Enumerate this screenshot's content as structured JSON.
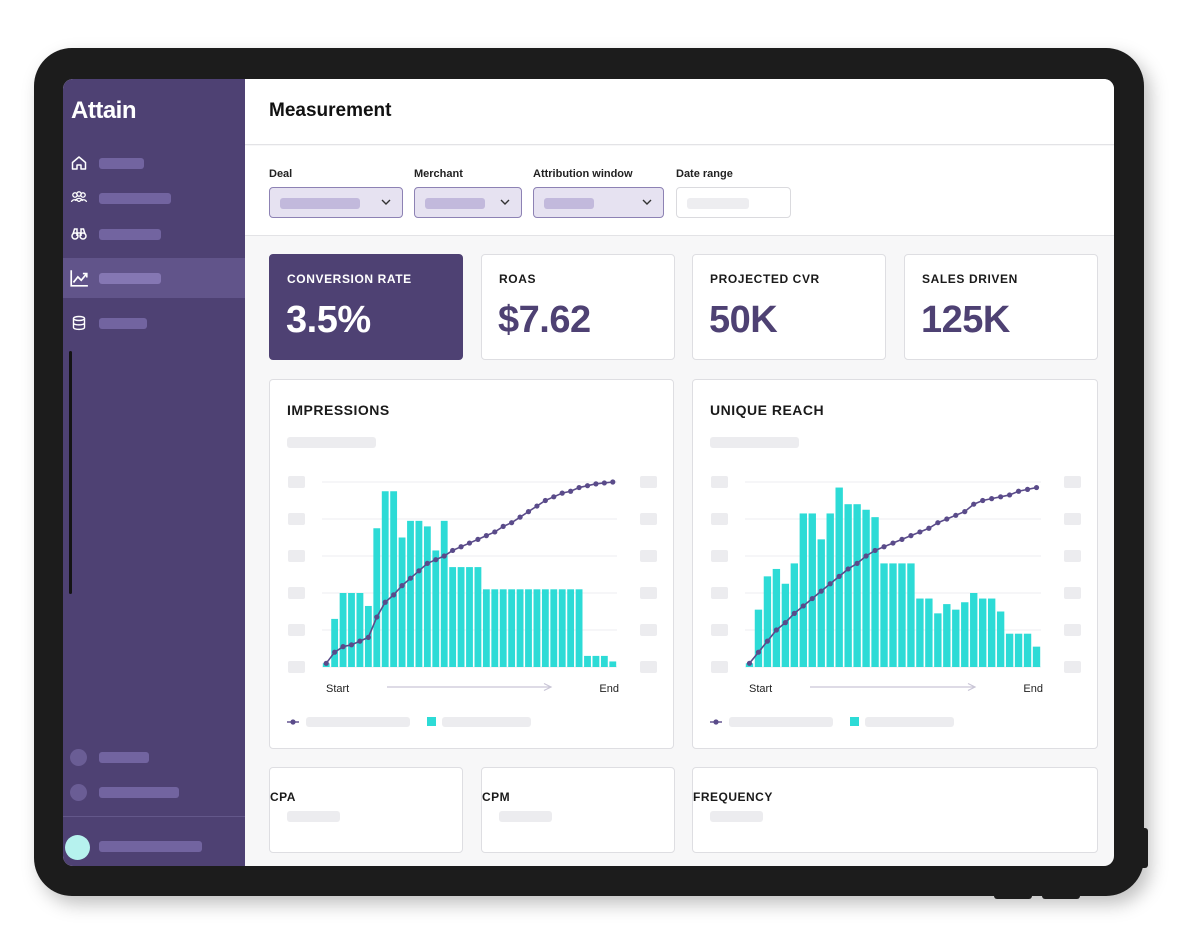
{
  "app": {
    "logo": "Attain"
  },
  "sidebar": {
    "items": [
      {
        "icon": "home-icon",
        "active": false
      },
      {
        "icon": "users-icon",
        "active": false
      },
      {
        "icon": "binoculars-icon",
        "active": false
      },
      {
        "icon": "chart-trend-icon",
        "active": true
      },
      {
        "icon": "database-icon",
        "active": false
      }
    ]
  },
  "header": {
    "title": "Measurement"
  },
  "filters": {
    "deal_label": "Deal",
    "merchant_label": "Merchant",
    "attribution_label": "Attribution window",
    "date_label": "Date range"
  },
  "kpis": [
    {
      "label": "CONVERSION RATE",
      "value": "3.5%"
    },
    {
      "label": "ROAS",
      "value": "$7.62"
    },
    {
      "label": "PROJECTED CVR",
      "value": "50K"
    },
    {
      "label": "SALES DRIVEN",
      "value": "125K"
    }
  ],
  "charts": {
    "impressions": {
      "title": "IMPRESSIONS",
      "start_label": "Start",
      "end_label": "End",
      "bars": [
        0.02,
        0.26,
        0.4,
        0.4,
        0.4,
        0.33,
        0.75,
        0.95,
        0.95,
        0.7,
        0.79,
        0.79,
        0.76,
        0.63,
        0.79,
        0.54,
        0.54,
        0.54,
        0.54,
        0.42,
        0.42,
        0.42,
        0.42,
        0.42,
        0.42,
        0.42,
        0.42,
        0.42,
        0.42,
        0.42,
        0.42,
        0.06,
        0.06,
        0.06,
        0.03
      ],
      "line": [
        0.02,
        0.08,
        0.11,
        0.12,
        0.14,
        0.16,
        0.27,
        0.35,
        0.39,
        0.44,
        0.48,
        0.52,
        0.56,
        0.58,
        0.6,
        0.63,
        0.65,
        0.67,
        0.69,
        0.71,
        0.73,
        0.76,
        0.78,
        0.81,
        0.84,
        0.87,
        0.9,
        0.92,
        0.94,
        0.95,
        0.97,
        0.98,
        0.99,
        0.995,
        1.0
      ],
      "legend_colors": {
        "line": "#5a4b8a",
        "bar": "#2ddbd6"
      }
    },
    "unique_reach": {
      "title": "UNIQUE REACH",
      "start_label": "Start",
      "end_label": "End",
      "bars": [
        0.02,
        0.31,
        0.49,
        0.53,
        0.45,
        0.56,
        0.83,
        0.83,
        0.69,
        0.83,
        0.97,
        0.88,
        0.88,
        0.85,
        0.81,
        0.56,
        0.56,
        0.56,
        0.56,
        0.37,
        0.37,
        0.29,
        0.34,
        0.31,
        0.35,
        0.4,
        0.37,
        0.37,
        0.3,
        0.18,
        0.18,
        0.18,
        0.11
      ],
      "line": [
        0.02,
        0.08,
        0.14,
        0.2,
        0.24,
        0.29,
        0.33,
        0.37,
        0.41,
        0.45,
        0.49,
        0.53,
        0.56,
        0.6,
        0.63,
        0.65,
        0.67,
        0.69,
        0.71,
        0.73,
        0.75,
        0.78,
        0.8,
        0.82,
        0.84,
        0.88,
        0.9,
        0.91,
        0.92,
        0.93,
        0.95,
        0.96,
        0.97
      ],
      "legend_colors": {
        "line": "#5a4b8a",
        "bar": "#2ddbd6"
      }
    }
  },
  "small_cards": [
    {
      "label": "CPA"
    },
    {
      "label": "CPM"
    },
    {
      "label": "FREQUENCY"
    }
  ]
}
